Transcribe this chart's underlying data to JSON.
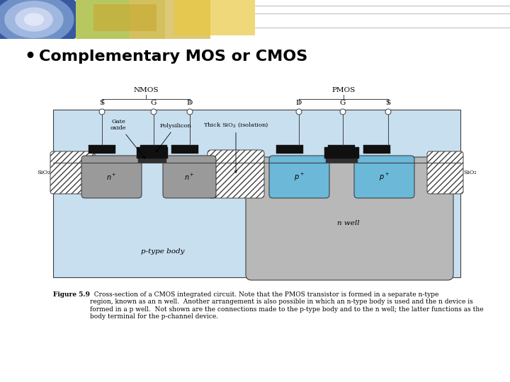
{
  "title": "Complementary MOS or CMOS",
  "bg_color": "#ffffff",
  "body_light_blue": "#c8dff0",
  "nwell_gray": "#b8b8b8",
  "n_diff_gray": "#9a9a9a",
  "p_diff_blue": "#6bb8d8",
  "sio2_label": "SiO₂",
  "nmos_label": "NMOS",
  "pmos_label": "PMOS",
  "ptype_body_label": "p-type body",
  "nwell_label": "n well",
  "caption_bold": "Figure 5.9",
  "caption_rest": "  Cross-section of a CMOS integrated circuit. Note that the PMOS transistor is formed in a separate n-type\nregion, known as an n well.  Another arrangement is also possible in which an n-type body is used and the n device is\nformed in a p well.  Not shown are the connections made to the p-type body and to the n well; the latter functions as the\nbody terminal for the p-channel device."
}
